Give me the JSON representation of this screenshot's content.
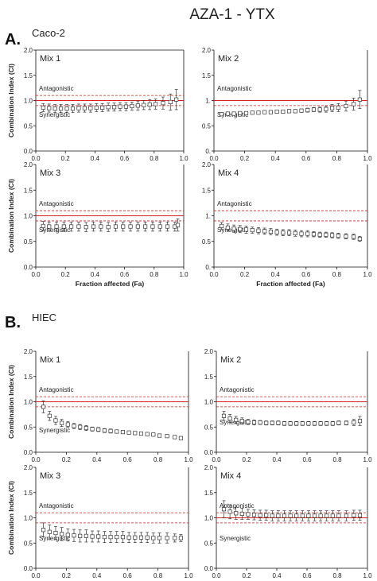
{
  "figure": {
    "title": "AZA-1 - YTX",
    "groups": [
      {
        "letter": "A.",
        "cell": "Caco-2"
      },
      {
        "letter": "B.",
        "cell": "HIEC"
      }
    ],
    "ylabel": "Combination Index (CI)",
    "xlabel": "Fraction affected (Fa)",
    "antagonistic": "Antagonistic",
    "synergistic": "Synergistic"
  },
  "chart_data": [
    {
      "type": "scatter",
      "group": "Caco-2",
      "mix": "Mix 1",
      "xlim": [
        0,
        1
      ],
      "ylim": [
        0,
        2
      ],
      "x_ticks": [
        "0.0",
        "0.2",
        "0.4",
        "0.6",
        "0.8",
        "1.0"
      ],
      "y_ticks": [
        "0.0",
        "0.5",
        "1.0",
        "1.5",
        "2.0"
      ],
      "ref_lines": {
        "solid": 1.0,
        "dashed": [
          1.1,
          0.9
        ]
      },
      "top_line": true,
      "x": [
        0.05,
        0.09,
        0.13,
        0.17,
        0.21,
        0.25,
        0.29,
        0.33,
        0.37,
        0.41,
        0.45,
        0.49,
        0.53,
        0.57,
        0.61,
        0.65,
        0.69,
        0.73,
        0.77,
        0.81,
        0.86,
        0.91,
        0.95
      ],
      "y": [
        0.86,
        0.85,
        0.84,
        0.84,
        0.84,
        0.84,
        0.85,
        0.85,
        0.85,
        0.86,
        0.86,
        0.87,
        0.87,
        0.88,
        0.88,
        0.89,
        0.9,
        0.91,
        0.92,
        0.93,
        0.95,
        0.97,
        1.02
      ],
      "err": [
        0.08,
        0.08,
        0.08,
        0.08,
        0.08,
        0.08,
        0.08,
        0.08,
        0.08,
        0.08,
        0.08,
        0.08,
        0.08,
        0.08,
        0.08,
        0.08,
        0.09,
        0.09,
        0.1,
        0.1,
        0.12,
        0.16,
        0.2
      ]
    },
    {
      "type": "scatter",
      "group": "Caco-2",
      "mix": "Mix 2",
      "xlim": [
        0,
        1
      ],
      "ylim": [
        0,
        2
      ],
      "x_ticks": [
        "0.0",
        "0.2",
        "0.4",
        "0.6",
        "0.8",
        "1.0"
      ],
      "y_ticks": [
        "0.0",
        "0.5",
        "1.0",
        "1.5",
        "2.0"
      ],
      "y_tick_text": [
        "0.",
        "0.5",
        "1.",
        "1.5",
        "2.0"
      ],
      "ref_lines": {
        "solid": 1.0,
        "dashed": [
          0.9
        ]
      },
      "top_line": false,
      "x": [
        0.05,
        0.09,
        0.13,
        0.17,
        0.21,
        0.25,
        0.29,
        0.33,
        0.37,
        0.41,
        0.45,
        0.49,
        0.53,
        0.57,
        0.61,
        0.65,
        0.69,
        0.73,
        0.77,
        0.81,
        0.86,
        0.91,
        0.95
      ],
      "y": [
        0.73,
        0.74,
        0.74,
        0.75,
        0.75,
        0.76,
        0.76,
        0.77,
        0.77,
        0.78,
        0.78,
        0.79,
        0.79,
        0.8,
        0.81,
        0.82,
        0.82,
        0.83,
        0.85,
        0.86,
        0.89,
        0.93,
        1.02
      ],
      "err": [
        0.02,
        0.02,
        0.02,
        0.02,
        0.02,
        0.02,
        0.02,
        0.02,
        0.02,
        0.02,
        0.02,
        0.02,
        0.03,
        0.03,
        0.04,
        0.04,
        0.05,
        0.06,
        0.07,
        0.08,
        0.1,
        0.12,
        0.18
      ]
    },
    {
      "type": "scatter",
      "group": "Caco-2",
      "mix": "Mix 3",
      "xlim": [
        0,
        1
      ],
      "ylim": [
        0,
        2
      ],
      "x_ticks": [
        "0.0",
        "0.2",
        "0.4",
        "0.6",
        "0.8",
        "1.0"
      ],
      "y_ticks": [
        "0.0",
        "0.5",
        "1.0",
        "1.5",
        "2.0"
      ],
      "ref_lines": {
        "solid": 1.0,
        "dashed": [
          1.1,
          0.9
        ]
      },
      "top_line": false,
      "x": [
        0.05,
        0.09,
        0.14,
        0.19,
        0.24,
        0.29,
        0.34,
        0.39,
        0.44,
        0.49,
        0.54,
        0.59,
        0.64,
        0.69,
        0.74,
        0.79,
        0.84,
        0.89,
        0.94,
        0.96
      ],
      "y": [
        0.8,
        0.79,
        0.79,
        0.79,
        0.79,
        0.79,
        0.78,
        0.79,
        0.79,
        0.78,
        0.79,
        0.79,
        0.79,
        0.79,
        0.79,
        0.79,
        0.79,
        0.79,
        0.79,
        0.82
      ],
      "err": [
        0.09,
        0.09,
        0.09,
        0.09,
        0.09,
        0.09,
        0.09,
        0.09,
        0.09,
        0.09,
        0.09,
        0.09,
        0.09,
        0.09,
        0.09,
        0.09,
        0.09,
        0.09,
        0.09,
        0.12
      ]
    },
    {
      "type": "scatter",
      "group": "Caco-2",
      "mix": "Mix 4",
      "xlim": [
        0,
        1
      ],
      "ylim": [
        0,
        2
      ],
      "x_ticks": [
        "0.0",
        "0.2",
        "0.4",
        "0.6",
        "0.8",
        "1.0"
      ],
      "y_ticks": [
        "0.0",
        "0.5",
        "1.0",
        "1.5",
        "2.0"
      ],
      "y_tick_text": [
        "0.",
        "0.5",
        "1.",
        "1.5",
        "2.0"
      ],
      "ref_lines": {
        "solid": null,
        "dashed": [
          1.1,
          0.9
        ]
      },
      "top_line": false,
      "x": [
        0.05,
        0.09,
        0.13,
        0.17,
        0.21,
        0.25,
        0.29,
        0.33,
        0.37,
        0.41,
        0.45,
        0.49,
        0.53,
        0.57,
        0.61,
        0.65,
        0.69,
        0.73,
        0.77,
        0.81,
        0.86,
        0.91,
        0.95
      ],
      "y": [
        0.8,
        0.77,
        0.75,
        0.74,
        0.73,
        0.72,
        0.71,
        0.7,
        0.69,
        0.68,
        0.67,
        0.67,
        0.66,
        0.65,
        0.65,
        0.64,
        0.63,
        0.63,
        0.62,
        0.61,
        0.6,
        0.59,
        0.55
      ],
      "err": [
        0.07,
        0.07,
        0.07,
        0.07,
        0.07,
        0.06,
        0.06,
        0.06,
        0.06,
        0.06,
        0.06,
        0.06,
        0.06,
        0.06,
        0.06,
        0.05,
        0.05,
        0.05,
        0.05,
        0.05,
        0.05,
        0.05,
        0.05
      ]
    },
    {
      "type": "scatter",
      "group": "HIEC",
      "mix": "Mix 1",
      "xlim": [
        0,
        1
      ],
      "ylim": [
        0,
        2
      ],
      "x_ticks": [
        "0.0",
        "0.2",
        "0.4",
        "0.6",
        "0.8",
        "1.0"
      ],
      "y_ticks": [
        "0.0",
        "0.5",
        "1.0",
        "1.5",
        "2.0"
      ],
      "ref_lines": {
        "solid": 1.0,
        "dashed": [
          1.1,
          0.9
        ]
      },
      "top_line": false,
      "x": [
        0.05,
        0.09,
        0.13,
        0.17,
        0.21,
        0.25,
        0.29,
        0.33,
        0.37,
        0.41,
        0.45,
        0.49,
        0.53,
        0.57,
        0.61,
        0.65,
        0.69,
        0.73,
        0.77,
        0.81,
        0.86,
        0.91,
        0.95
      ],
      "y": [
        0.9,
        0.72,
        0.63,
        0.58,
        0.55,
        0.52,
        0.5,
        0.48,
        0.46,
        0.45,
        0.43,
        0.42,
        0.41,
        0.4,
        0.39,
        0.38,
        0.37,
        0.36,
        0.35,
        0.33,
        0.32,
        0.3,
        0.28
      ],
      "err": [
        0.12,
        0.09,
        0.08,
        0.07,
        0.06,
        0.05,
        0.05,
        0.05,
        0.04,
        0.04,
        0.04,
        0.04,
        0.03,
        0.03,
        0.03,
        0.03,
        0.03,
        0.03,
        0.03,
        0.03,
        0.03,
        0.03,
        0.03
      ]
    },
    {
      "type": "scatter",
      "group": "HIEC",
      "mix": "Mix 2",
      "xlim": [
        0,
        1
      ],
      "ylim": [
        0,
        2
      ],
      "x_ticks": [
        "0.0",
        "0.2",
        "0.4",
        "0.6",
        "0.8",
        "1.0"
      ],
      "y_ticks": [
        "0.0",
        "0.5",
        "1.0",
        "1.5",
        "2.0"
      ],
      "ref_lines": {
        "solid": 1.0,
        "dashed": [
          1.1,
          0.9
        ]
      },
      "top_line": false,
      "x": [
        0.05,
        0.09,
        0.13,
        0.17,
        0.21,
        0.25,
        0.29,
        0.33,
        0.37,
        0.41,
        0.45,
        0.49,
        0.53,
        0.57,
        0.61,
        0.65,
        0.69,
        0.73,
        0.77,
        0.81,
        0.86,
        0.91,
        0.95
      ],
      "y": [
        0.72,
        0.67,
        0.64,
        0.62,
        0.6,
        0.59,
        0.59,
        0.58,
        0.58,
        0.58,
        0.57,
        0.57,
        0.57,
        0.57,
        0.57,
        0.57,
        0.57,
        0.57,
        0.57,
        0.58,
        0.58,
        0.59,
        0.62
      ],
      "err": [
        0.09,
        0.08,
        0.07,
        0.06,
        0.05,
        0.05,
        0.04,
        0.04,
        0.04,
        0.04,
        0.04,
        0.04,
        0.04,
        0.04,
        0.04,
        0.04,
        0.04,
        0.04,
        0.04,
        0.04,
        0.04,
        0.06,
        0.09
      ]
    },
    {
      "type": "scatter",
      "group": "HIEC",
      "mix": "Mix 3",
      "xlim": [
        0,
        1
      ],
      "ylim": [
        0,
        2
      ],
      "x_ticks": [
        "0.0",
        "0.2",
        "0.4",
        "0.6",
        "0.8",
        "1.0"
      ],
      "y_ticks": [
        "0.0",
        "0.5",
        "1.0",
        "1.5",
        "2.0"
      ],
      "ref_lines": {
        "solid": null,
        "dashed": [
          1.1,
          0.9
        ]
      },
      "top_line": false,
      "x": [
        0.05,
        0.09,
        0.13,
        0.17,
        0.21,
        0.25,
        0.29,
        0.33,
        0.37,
        0.41,
        0.45,
        0.49,
        0.53,
        0.57,
        0.61,
        0.65,
        0.69,
        0.73,
        0.77,
        0.81,
        0.86,
        0.91,
        0.95
      ],
      "y": [
        0.76,
        0.72,
        0.7,
        0.68,
        0.66,
        0.65,
        0.64,
        0.64,
        0.63,
        0.63,
        0.62,
        0.62,
        0.62,
        0.62,
        0.61,
        0.61,
        0.61,
        0.61,
        0.6,
        0.6,
        0.6,
        0.6,
        0.6
      ],
      "err": [
        0.14,
        0.14,
        0.13,
        0.13,
        0.12,
        0.12,
        0.12,
        0.12,
        0.11,
        0.11,
        0.11,
        0.11,
        0.11,
        0.11,
        0.1,
        0.1,
        0.1,
        0.1,
        0.1,
        0.1,
        0.1,
        0.08,
        0.07
      ]
    },
    {
      "type": "scatter",
      "group": "HIEC",
      "mix": "Mix 4",
      "xlim": [
        0,
        1
      ],
      "ylim": [
        0,
        2
      ],
      "x_ticks": [
        "0.0",
        "0.2",
        "0.4",
        "0.6",
        "0.8",
        "1.0"
      ],
      "y_ticks": [
        "0.0",
        "0.5",
        "1.0",
        "1.5",
        "2.0"
      ],
      "ref_lines": {
        "solid": 1.0,
        "dashed": [
          1.1,
          0.9
        ]
      },
      "top_line": false,
      "x": [
        0.05,
        0.09,
        0.13,
        0.17,
        0.21,
        0.25,
        0.29,
        0.33,
        0.37,
        0.41,
        0.45,
        0.49,
        0.53,
        0.57,
        0.61,
        0.65,
        0.69,
        0.73,
        0.77,
        0.81,
        0.86,
        0.91,
        0.95
      ],
      "y": [
        1.17,
        1.12,
        1.09,
        1.08,
        1.07,
        1.06,
        1.05,
        1.05,
        1.04,
        1.04,
        1.04,
        1.04,
        1.04,
        1.04,
        1.04,
        1.04,
        1.04,
        1.04,
        1.04,
        1.04,
        1.04,
        1.05,
        1.05
      ],
      "err": [
        0.17,
        0.14,
        0.12,
        0.11,
        0.1,
        0.1,
        0.1,
        0.1,
        0.1,
        0.1,
        0.1,
        0.1,
        0.1,
        0.1,
        0.1,
        0.1,
        0.1,
        0.1,
        0.1,
        0.1,
        0.1,
        0.1,
        0.1
      ]
    }
  ]
}
